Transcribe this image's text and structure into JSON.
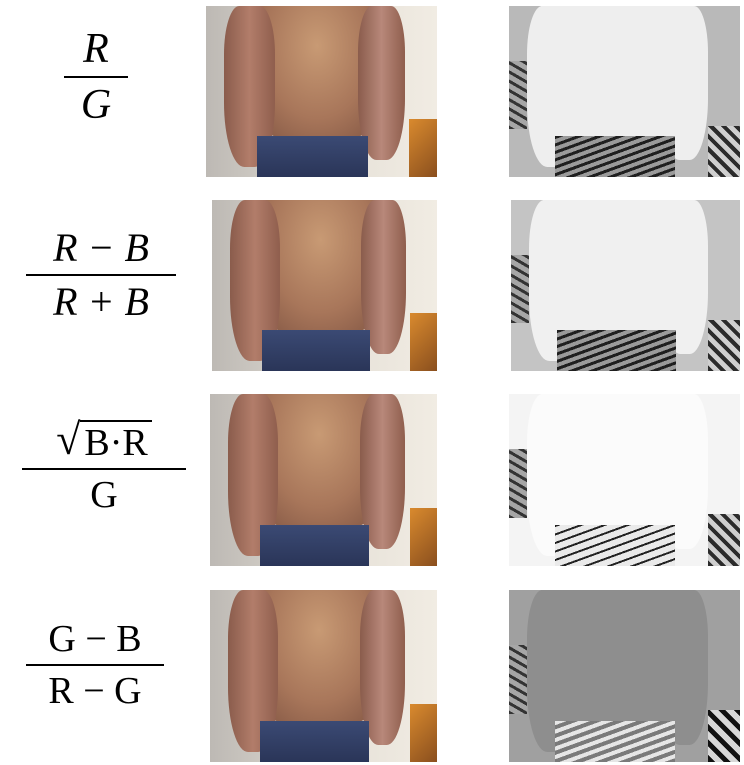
{
  "rows": [
    {
      "numerator": "R",
      "denominator": "G",
      "style": "italic"
    },
    {
      "numerator": "R − B",
      "denominator": "R + B",
      "style": "italic"
    },
    {
      "numerator_radicand": "B·R",
      "denominator": "G",
      "style": "roman"
    },
    {
      "numerator": "G − B",
      "denominator": "R − G",
      "style": "roman"
    }
  ]
}
